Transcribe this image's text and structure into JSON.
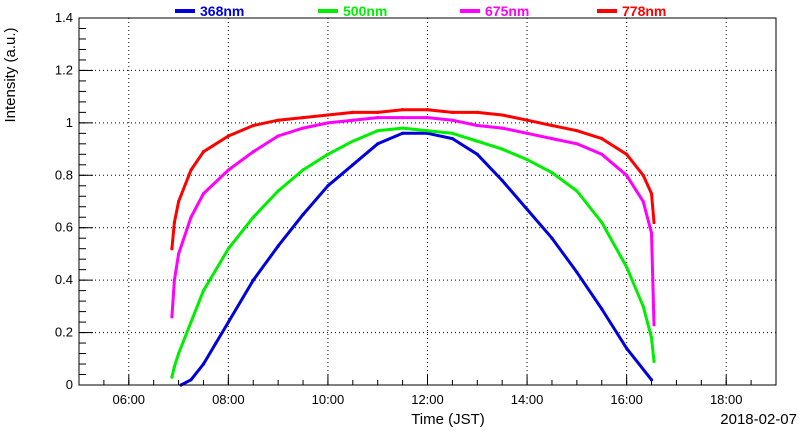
{
  "chart_data": {
    "type": "line",
    "xlabel": "Time (JST)",
    "ylabel": "Intensity (a.u.)",
    "date_label": "2018-02-07",
    "xlim": [
      "05:00",
      "19:00"
    ],
    "ylim": [
      0,
      1.4
    ],
    "x_ticks": [
      "06:00",
      "08:00",
      "10:00",
      "12:00",
      "14:00",
      "16:00",
      "18:00"
    ],
    "y_ticks": [
      "0",
      "0.2",
      "0.4",
      "0.6",
      "0.8",
      "1",
      "1.2",
      "1.4"
    ],
    "grid": true,
    "legend_position": "top",
    "series": [
      {
        "name": "368nm",
        "color": "#0000dd",
        "x": [
          "07:03",
          "07:15",
          "07:30",
          "07:45",
          "08:00",
          "08:30",
          "09:00",
          "09:30",
          "10:00",
          "10:30",
          "11:00",
          "11:30",
          "12:00",
          "12:30",
          "13:00",
          "13:30",
          "14:00",
          "14:30",
          "15:00",
          "15:30",
          "16:00",
          "16:30"
        ],
        "y": [
          0.0,
          0.02,
          0.08,
          0.16,
          0.24,
          0.4,
          0.53,
          0.65,
          0.76,
          0.84,
          0.92,
          0.96,
          0.96,
          0.94,
          0.88,
          0.78,
          0.67,
          0.56,
          0.43,
          0.29,
          0.14,
          0.02
        ]
      },
      {
        "name": "500nm",
        "color": "#00ee00",
        "x": [
          "06:52",
          "06:55",
          "07:00",
          "07:15",
          "07:30",
          "08:00",
          "08:30",
          "09:00",
          "09:30",
          "10:00",
          "10:30",
          "11:00",
          "11:30",
          "12:00",
          "12:30",
          "13:00",
          "13:30",
          "14:00",
          "14:30",
          "15:00",
          "15:30",
          "16:00",
          "16:20",
          "16:30",
          "16:33"
        ],
        "y": [
          0.03,
          0.07,
          0.12,
          0.24,
          0.36,
          0.52,
          0.64,
          0.74,
          0.82,
          0.88,
          0.93,
          0.97,
          0.98,
          0.97,
          0.96,
          0.93,
          0.9,
          0.86,
          0.81,
          0.74,
          0.62,
          0.45,
          0.3,
          0.18,
          0.09
        ]
      },
      {
        "name": "675nm",
        "color": "#ff00ff",
        "x": [
          "06:52",
          "06:55",
          "07:00",
          "07:15",
          "07:30",
          "08:00",
          "08:30",
          "09:00",
          "09:30",
          "10:00",
          "10:30",
          "11:00",
          "11:30",
          "12:00",
          "12:30",
          "13:00",
          "13:30",
          "14:00",
          "14:30",
          "15:00",
          "15:30",
          "16:00",
          "16:20",
          "16:30",
          "16:33"
        ],
        "y": [
          0.26,
          0.4,
          0.5,
          0.64,
          0.73,
          0.82,
          0.89,
          0.95,
          0.98,
          1.0,
          1.01,
          1.02,
          1.02,
          1.02,
          1.01,
          0.99,
          0.98,
          0.96,
          0.94,
          0.92,
          0.88,
          0.8,
          0.7,
          0.58,
          0.23
        ]
      },
      {
        "name": "778nm",
        "color": "#ff0000",
        "x": [
          "06:52",
          "06:55",
          "07:00",
          "07:15",
          "07:30",
          "08:00",
          "08:30",
          "09:00",
          "09:30",
          "10:00",
          "10:30",
          "11:00",
          "11:30",
          "12:00",
          "12:30",
          "13:00",
          "13:30",
          "14:00",
          "14:30",
          "15:00",
          "15:30",
          "16:00",
          "16:20",
          "16:30",
          "16:33"
        ],
        "y": [
          0.52,
          0.62,
          0.7,
          0.82,
          0.89,
          0.95,
          0.99,
          1.01,
          1.02,
          1.03,
          1.04,
          1.04,
          1.05,
          1.05,
          1.04,
          1.04,
          1.03,
          1.01,
          0.99,
          0.97,
          0.94,
          0.88,
          0.8,
          0.73,
          0.62
        ]
      }
    ]
  }
}
